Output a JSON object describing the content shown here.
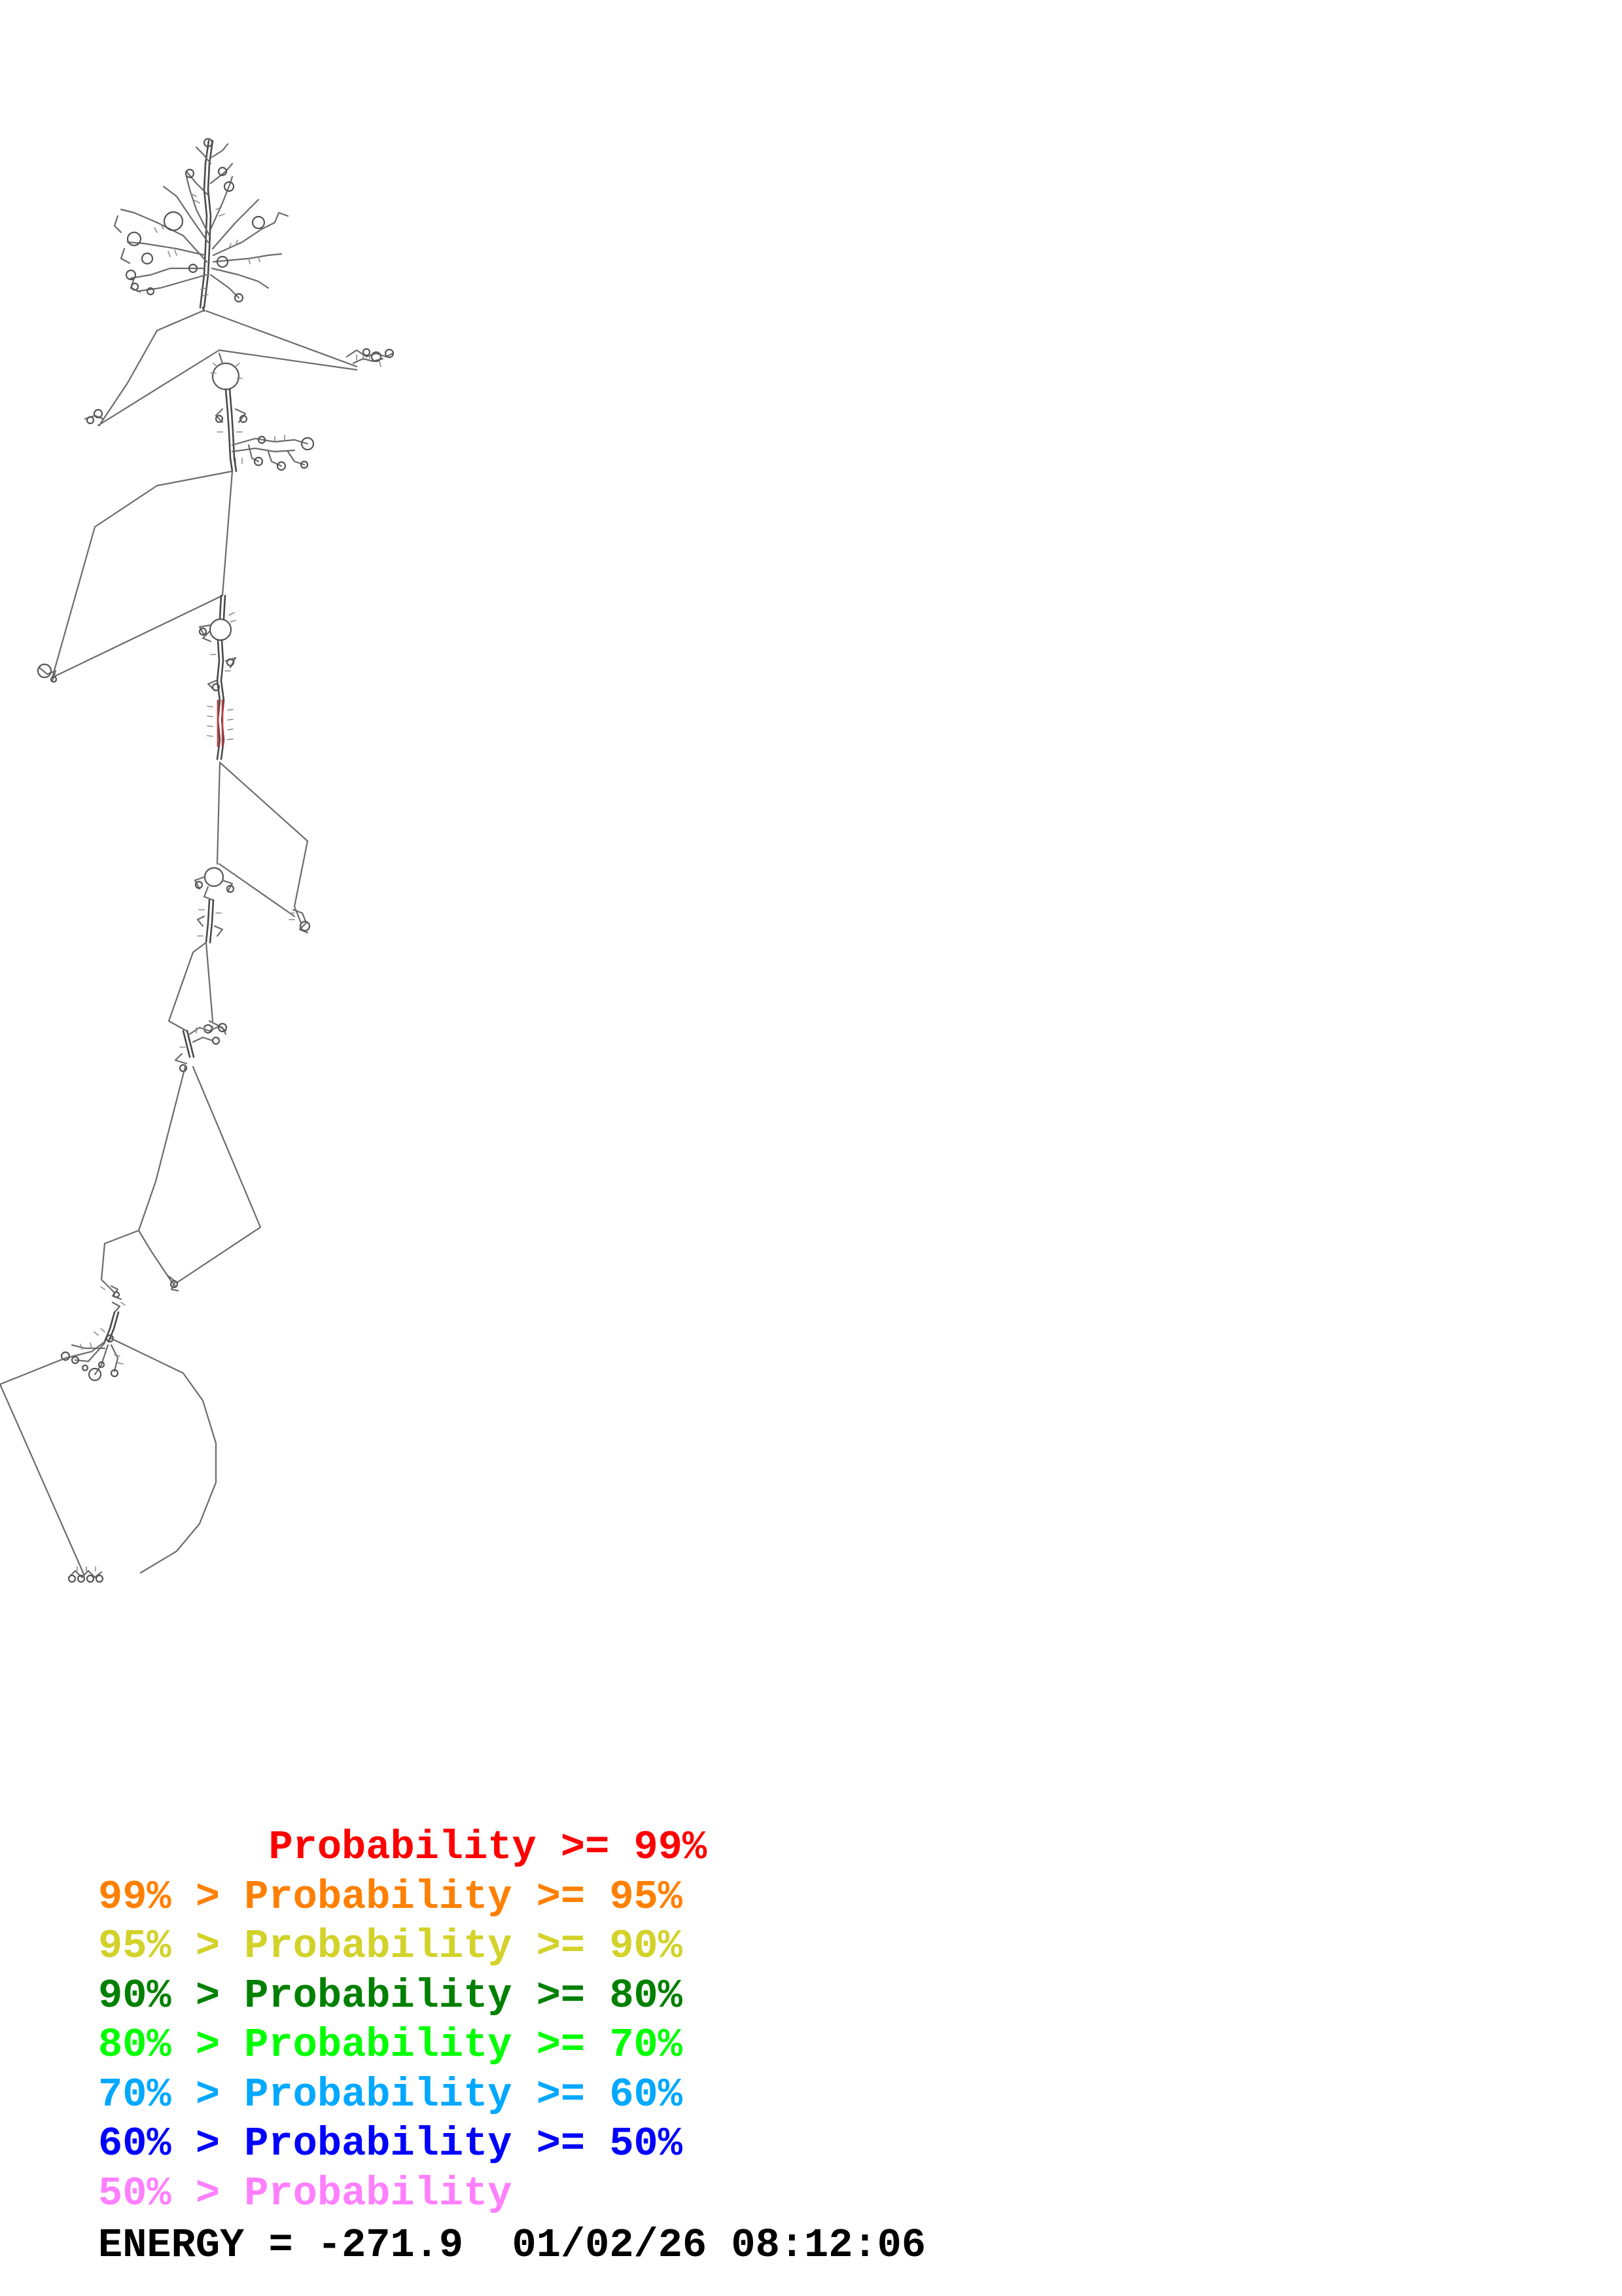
{
  "legend": {
    "rows": [
      {
        "text": "       Probability >= 99%",
        "color": "#ff0000"
      },
      {
        "text": "99% > Probability >= 95%",
        "color": "#ff8000"
      },
      {
        "text": "95% > Probability >= 90%",
        "color": "#d2d22a"
      },
      {
        "text": "90% > Probability >= 80%",
        "color": "#008000"
      },
      {
        "text": "80% > Probability >= 70%",
        "color": "#00ff00"
      },
      {
        "text": "70% > Probability >= 60%",
        "color": "#00a8ff"
      },
      {
        "text": "60% > Probability >= 50%",
        "color": "#0000ff"
      },
      {
        "text": "50% > Probability",
        "color": "#ff80ff"
      }
    ]
  },
  "footer": {
    "energy_label": "ENERGY = ",
    "energy_value": "-271.9",
    "timestamp": "01/02/26 08:12:06"
  },
  "diagram": {
    "line_color": "#6b6b6b"
  }
}
